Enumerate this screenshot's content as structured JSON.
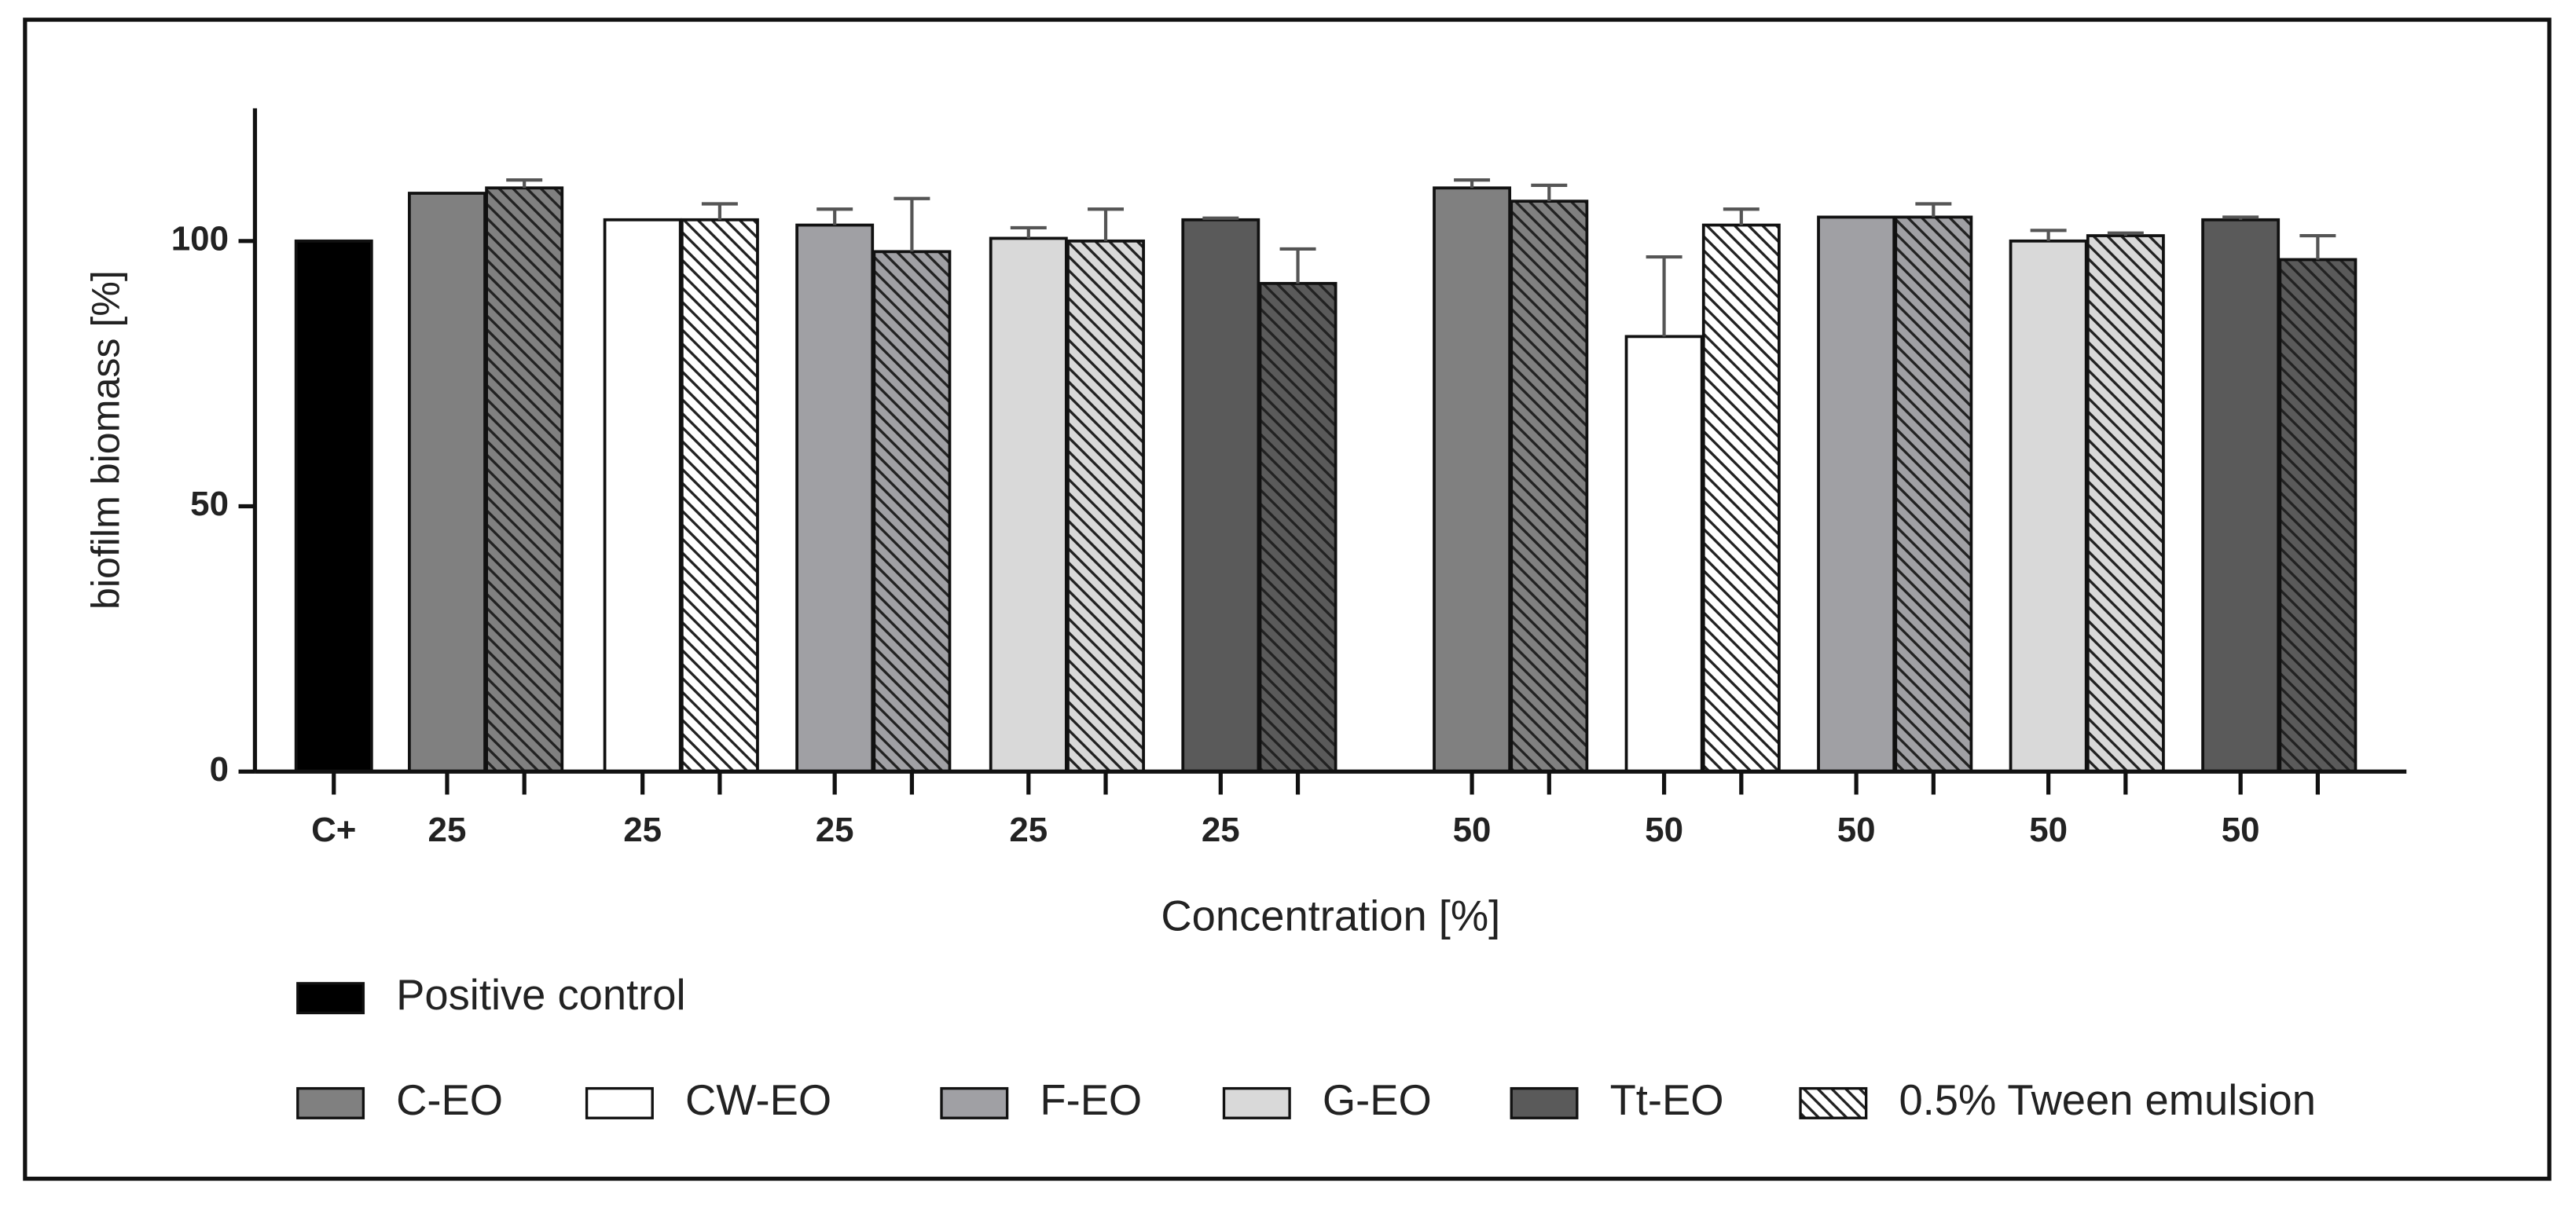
{
  "chart_data": {
    "type": "bar",
    "y_label": "biofilm biomass [%]",
    "x_label": "Concentration [%]",
    "ylim": [
      0,
      125
    ],
    "yticks": [
      0,
      50,
      100
    ],
    "groups": [
      {
        "category": "C+",
        "bars": [
          {
            "value": 100,
            "color": "#000000",
            "hatch": false
          }
        ]
      },
      {
        "category": "25",
        "bars": [
          {
            "value": 109,
            "color": "#808080",
            "hatch": false
          },
          {
            "value": 110,
            "error": 1.5,
            "color": "#808080",
            "hatch": true
          }
        ]
      },
      {
        "category": "25",
        "bars": [
          {
            "value": 104,
            "color": "#ffffff",
            "hatch": false
          },
          {
            "value": 104,
            "error": 3,
            "color": "#ffffff",
            "hatch": true
          }
        ]
      },
      {
        "category": "25",
        "bars": [
          {
            "value": 103,
            "error": 3,
            "color": "#a0a0a4",
            "hatch": false
          },
          {
            "value": 98,
            "error": 10,
            "color": "#a0a0a4",
            "hatch": true
          }
        ]
      },
      {
        "category": "25",
        "bars": [
          {
            "value": 100.5,
            "error": 2,
            "color": "#d9d9d9",
            "hatch": false
          },
          {
            "value": 100,
            "error": 6,
            "color": "#d9d9d9",
            "hatch": true
          }
        ]
      },
      {
        "category": "25",
        "bars": [
          {
            "value": 104,
            "error": 0.3,
            "color": "#5a5a5a",
            "hatch": false
          },
          {
            "value": 92,
            "error": 6.5,
            "color": "#5a5a5a",
            "hatch": true
          }
        ]
      },
      {
        "category": "50",
        "bars": [
          {
            "value": 110,
            "error": 1.5,
            "color": "#808080",
            "hatch": false
          },
          {
            "value": 107.5,
            "error": 3,
            "color": "#808080",
            "hatch": true
          }
        ]
      },
      {
        "category": "50",
        "bars": [
          {
            "value": 82,
            "error": 15,
            "color": "#ffffff",
            "hatch": false
          },
          {
            "value": 103,
            "error": 3,
            "color": "#ffffff",
            "hatch": true
          }
        ]
      },
      {
        "category": "50",
        "bars": [
          {
            "value": 104.5,
            "color": "#a0a0a4",
            "hatch": false
          },
          {
            "value": 104.5,
            "error": 2.5,
            "color": "#a0a0a4",
            "hatch": true
          }
        ]
      },
      {
        "category": "50",
        "bars": [
          {
            "value": 100,
            "error": 2,
            "color": "#d9d9d9",
            "hatch": false
          },
          {
            "value": 101,
            "error": 0.5,
            "color": "#d9d9d9",
            "hatch": true
          }
        ]
      },
      {
        "category": "50",
        "bars": [
          {
            "value": 104,
            "error": 0.5,
            "color": "#5a5a5a",
            "hatch": false
          },
          {
            "value": 96.5,
            "error": 4.5,
            "color": "#5a5a5a",
            "hatch": true
          }
        ]
      }
    ],
    "legend": [
      {
        "name": "Positive control",
        "color": "#000000",
        "hatch": false
      },
      {
        "name": "C-EO",
        "color": "#808080",
        "hatch": false
      },
      {
        "name": "CW-EO",
        "color": "#ffffff",
        "hatch": false
      },
      {
        "name": "F-EO",
        "color": "#a0a0a4",
        "hatch": false
      },
      {
        "name": "G-EO",
        "color": "#d9d9d9",
        "hatch": false
      },
      {
        "name": "Tt-EO",
        "color": "#5a5a5a",
        "hatch": false
      },
      {
        "name": "0.5% Tween emulsion",
        "color": "#ffffff",
        "hatch": true
      }
    ]
  }
}
